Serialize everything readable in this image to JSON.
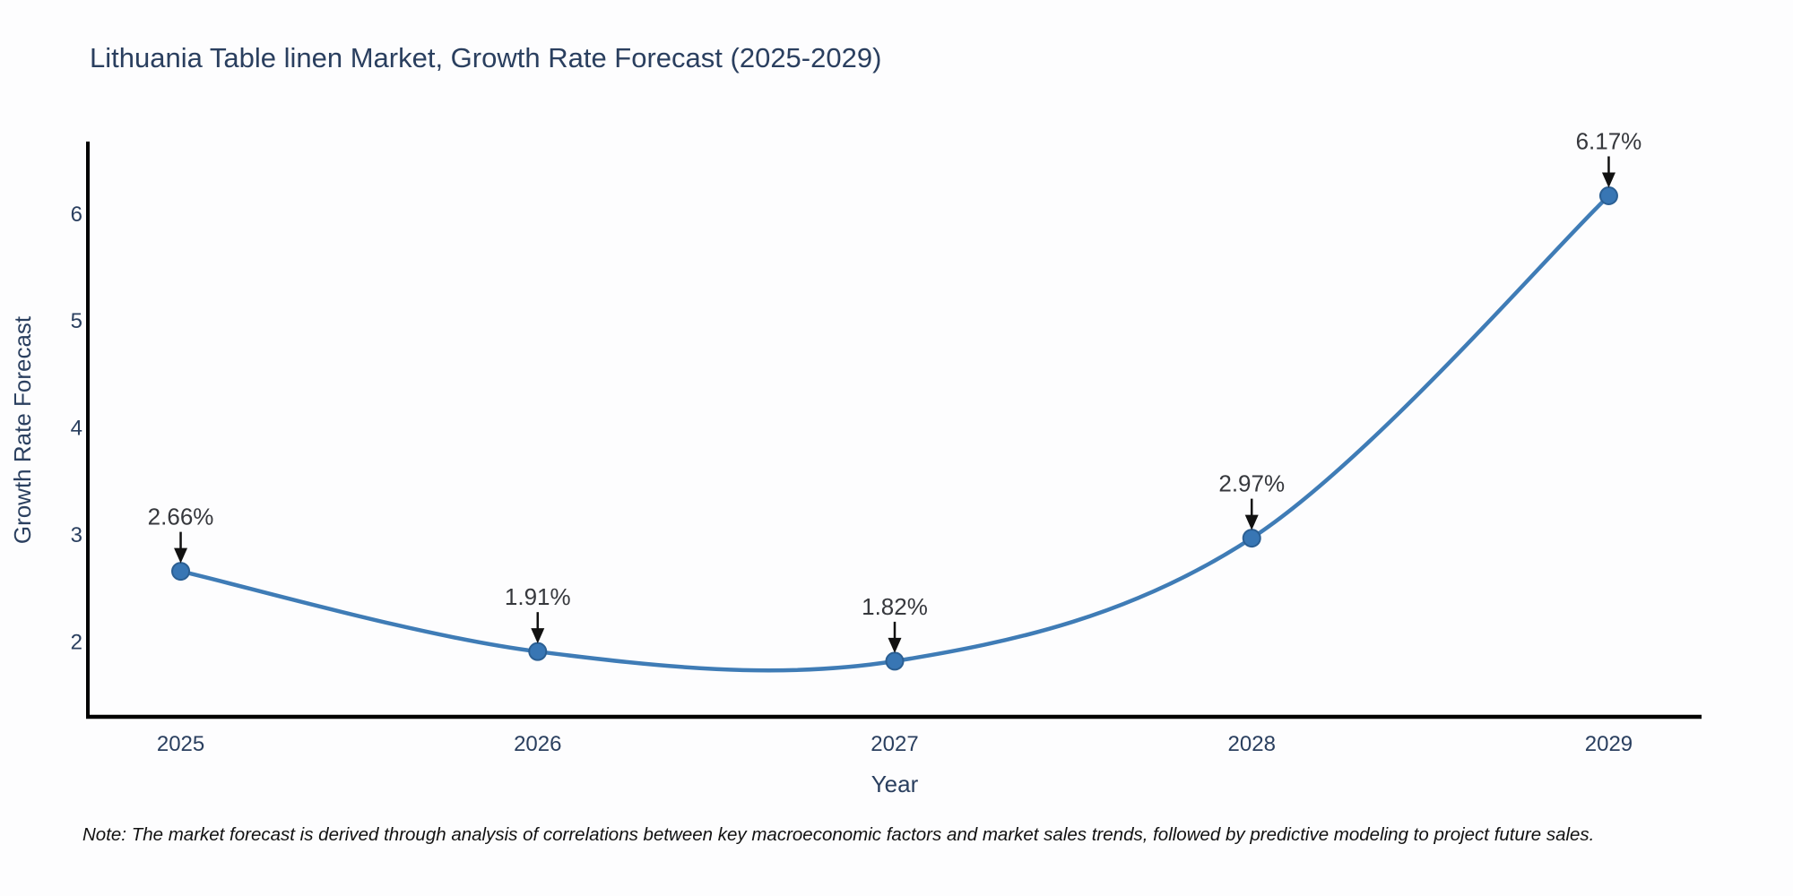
{
  "chart_data": {
    "type": "line",
    "title": "Lithuania Table linen Market, Growth Rate Forecast (2025-2029)",
    "xlabel": "Year",
    "ylabel": "Growth Rate Forecast",
    "x": [
      2025,
      2026,
      2027,
      2028,
      2029
    ],
    "values": [
      2.66,
      1.91,
      1.82,
      2.97,
      6.17
    ],
    "point_labels": [
      "2.66%",
      "1.91%",
      "1.82%",
      "2.97%",
      "6.17%"
    ],
    "x_tick_labels": [
      "2025",
      "2026",
      "2027",
      "2028",
      "2029"
    ],
    "y_tick_values": [
      2,
      3,
      4,
      5,
      6
    ],
    "y_tick_labels": [
      "2",
      "3",
      "4",
      "5",
      "6"
    ],
    "xlim": [
      2024.74,
      2029.26
    ],
    "ylim": [
      1.3,
      6.66
    ],
    "grid": false,
    "legend_position": "none",
    "line_smoothing": "spline",
    "colors": {
      "line": "#3f7cb6",
      "marker_fill": "#3876b4",
      "marker_edge": "#2b5f93",
      "axis_spine": "#000000",
      "title_text": "#2a3f5f",
      "tick_text": "#2a3f5f",
      "annotation_text": "#36383d",
      "annotation_arrow": "#111111",
      "background": "#fdfdfe"
    }
  },
  "note": "Note: The market forecast is derived through analysis of correlations between key macroeconomic factors and market sales trends, followed by predictive modeling to project future sales."
}
